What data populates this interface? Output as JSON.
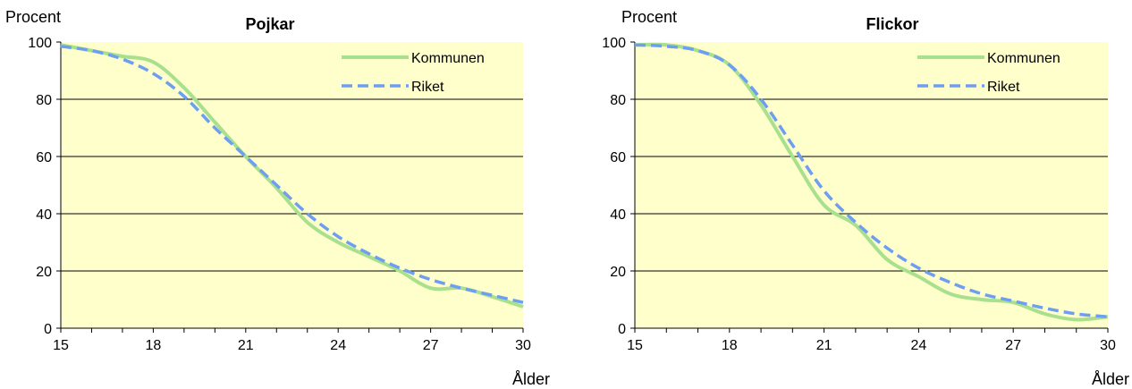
{
  "chart_data": [
    {
      "type": "line",
      "title": "Pojkar",
      "ylabel": "Procent",
      "xlabel": "Ålder",
      "xlim": [
        15,
        30
      ],
      "ylim": [
        0,
        100
      ],
      "x_ticks": [
        15,
        18,
        21,
        24,
        27,
        30
      ],
      "y_ticks": [
        0,
        20,
        40,
        60,
        80,
        100
      ],
      "grid": "horizontal",
      "legend_position": "top-right",
      "series": [
        {
          "name": "Kommunen",
          "style": "solid",
          "color": "#a9e08e",
          "x": [
            15,
            16,
            17,
            18,
            19,
            20,
            21,
            22,
            23,
            24,
            25,
            26,
            27,
            28,
            29,
            30
          ],
          "values": [
            99,
            97,
            95,
            93,
            84,
            72,
            60,
            49,
            37,
            30,
            25,
            20,
            14,
            14,
            11,
            7.5
          ]
        },
        {
          "name": "Riket",
          "style": "dashed",
          "color": "#6e9ef2",
          "x": [
            15,
            16,
            17,
            18,
            19,
            20,
            21,
            22,
            23,
            24,
            25,
            26,
            27,
            28,
            29,
            30
          ],
          "values": [
            98.5,
            97,
            94,
            89,
            81,
            70,
            60,
            50,
            40,
            32,
            26,
            21,
            17,
            14,
            11.5,
            9
          ]
        }
      ]
    },
    {
      "type": "line",
      "title": "Flickor",
      "ylabel": "Procent",
      "xlabel": "Ålder",
      "xlim": [
        15,
        30
      ],
      "ylim": [
        0,
        100
      ],
      "x_ticks": [
        15,
        18,
        21,
        24,
        27,
        30
      ],
      "y_ticks": [
        0,
        20,
        40,
        60,
        80,
        100
      ],
      "grid": "horizontal",
      "legend_position": "top-right",
      "series": [
        {
          "name": "Kommunen",
          "style": "solid",
          "color": "#a9e08e",
          "x": [
            15,
            16,
            17,
            18,
            19,
            20,
            21,
            22,
            23,
            24,
            25,
            26,
            27,
            28,
            29,
            30
          ],
          "values": [
            99,
            99,
            97,
            92,
            78,
            60,
            43,
            36,
            24,
            18,
            12,
            10,
            9,
            5,
            3,
            4
          ]
        },
        {
          "name": "Riket",
          "style": "dashed",
          "color": "#6e9ef2",
          "x": [
            15,
            16,
            17,
            18,
            19,
            20,
            21,
            22,
            23,
            24,
            25,
            26,
            27,
            28,
            29,
            30
          ],
          "values": [
            99,
            98.5,
            97,
            92,
            80,
            64,
            48,
            37,
            28,
            21,
            16,
            12,
            9.5,
            7,
            5,
            4
          ]
        }
      ]
    }
  ]
}
